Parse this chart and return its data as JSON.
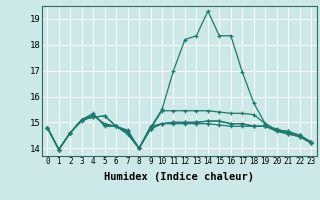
{
  "title": "",
  "xlabel": "Humidex (Indice chaleur)",
  "bg_color": "#cce8e8",
  "grid_color": "#ffffff",
  "line_color": "#1a7a6e",
  "xlim": [
    -0.5,
    23.5
  ],
  "ylim": [
    13.7,
    19.5
  ],
  "xticks": [
    0,
    1,
    2,
    3,
    4,
    5,
    6,
    7,
    8,
    9,
    10,
    11,
    12,
    13,
    14,
    15,
    16,
    17,
    18,
    19,
    20,
    21,
    22,
    23
  ],
  "yticks": [
    14,
    15,
    16,
    17,
    18,
    19
  ],
  "lines": [
    [
      14.8,
      13.95,
      14.6,
      15.1,
      15.2,
      15.25,
      14.85,
      14.7,
      14.0,
      14.8,
      15.5,
      17.0,
      18.2,
      18.35,
      19.3,
      18.35,
      18.35,
      16.95,
      15.75,
      14.95,
      14.7,
      14.65,
      14.5,
      14.25
    ],
    [
      14.8,
      13.95,
      14.6,
      15.1,
      15.3,
      14.9,
      14.85,
      14.55,
      14.0,
      14.85,
      14.95,
      15.0,
      15.0,
      15.0,
      15.05,
      15.05,
      14.95,
      14.95,
      14.85,
      14.85,
      14.75,
      14.6,
      14.5,
      14.25
    ],
    [
      14.8,
      13.95,
      14.6,
      15.05,
      15.25,
      14.95,
      14.85,
      14.55,
      14.0,
      14.75,
      14.95,
      15.0,
      15.0,
      15.0,
      15.05,
      15.05,
      14.95,
      14.95,
      14.85,
      14.85,
      14.65,
      14.55,
      14.45,
      14.2
    ],
    [
      14.8,
      13.95,
      14.6,
      15.1,
      15.2,
      15.25,
      14.85,
      14.65,
      14.0,
      14.75,
      15.45,
      15.45,
      15.45,
      15.45,
      15.45,
      15.4,
      15.35,
      15.35,
      15.3,
      14.95,
      14.7,
      14.65,
      14.5,
      14.2
    ],
    [
      14.8,
      13.95,
      14.6,
      15.1,
      15.35,
      14.85,
      14.85,
      14.6,
      14.0,
      14.75,
      14.95,
      14.95,
      14.95,
      14.95,
      14.95,
      14.9,
      14.85,
      14.85,
      14.85,
      14.85,
      14.7,
      14.55,
      14.45,
      14.2
    ]
  ]
}
